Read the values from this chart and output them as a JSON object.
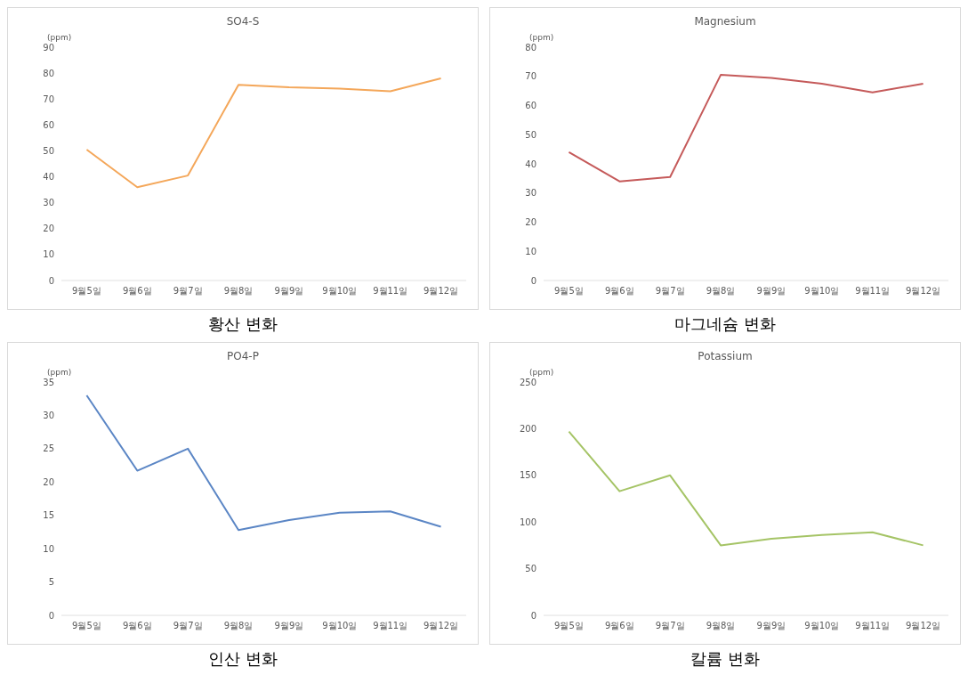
{
  "chart_data": [
    {
      "type": "line",
      "title": "SO4-S",
      "ylabel": "(ppm)",
      "categories": [
        "9월5일",
        "9월6일",
        "9월7일",
        "9월8일",
        "9월9일",
        "9월10일",
        "9월11일",
        "9월12일"
      ],
      "series": [
        {
          "color": "#f4a75a",
          "values": [
            50.5,
            36,
            40.5,
            75.5,
            74.5,
            74,
            73,
            78
          ]
        }
      ],
      "ylim": [
        0,
        90
      ],
      "yticks": [
        0,
        10,
        20,
        30,
        40,
        50,
        60,
        70,
        80,
        90
      ],
      "annotations": [
        "황산 변화"
      ]
    },
    {
      "type": "line",
      "title": "Magnesium",
      "ylabel": "(ppm)",
      "categories": [
        "9월5일",
        "9월6일",
        "9월7일",
        "9월8일",
        "9월9일",
        "9월10일",
        "9월11일",
        "9월12일"
      ],
      "series": [
        {
          "color": "#c55a5a",
          "values": [
            44,
            34,
            35.5,
            70.5,
            69.5,
            67.5,
            64.5,
            67.5
          ]
        }
      ],
      "ylim": [
        0,
        80
      ],
      "yticks": [
        0,
        10,
        20,
        30,
        40,
        50,
        60,
        70,
        80
      ],
      "annotations": [
        "마그네슘 변화"
      ]
    },
    {
      "type": "line",
      "title": "PO4-P",
      "ylabel": "(ppm)",
      "categories": [
        "9월5일",
        "9월6일",
        "9월7일",
        "9월8일",
        "9월9일",
        "9월10일",
        "9월11일",
        "9월12일"
      ],
      "series": [
        {
          "color": "#5b86c5",
          "values": [
            33,
            21.7,
            25,
            12.8,
            14.3,
            15.4,
            15.6,
            13.3
          ]
        }
      ],
      "ylim": [
        0,
        35
      ],
      "yticks": [
        0,
        5,
        10,
        15,
        20,
        25,
        30,
        35
      ],
      "annotations": [
        "인산 변화"
      ]
    },
    {
      "type": "line",
      "title": "Potassium",
      "ylabel": "(ppm)",
      "categories": [
        "9월5일",
        "9월6일",
        "9월7일",
        "9월8일",
        "9월9일",
        "9월10일",
        "9월11일",
        "9월12일"
      ],
      "series": [
        {
          "color": "#a5c466",
          "values": [
            197,
            133,
            150,
            75,
            82,
            86,
            89,
            75
          ]
        }
      ],
      "ylim": [
        0,
        250
      ],
      "yticks": [
        0,
        50,
        100,
        150,
        200,
        250
      ],
      "annotations": [
        "칼륨 변화"
      ]
    }
  ]
}
